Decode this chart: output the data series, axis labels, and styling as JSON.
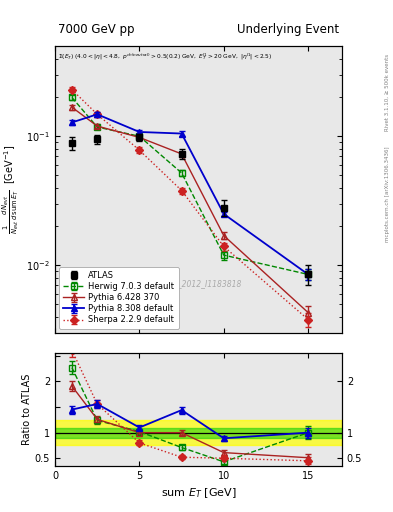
{
  "title_left": "7000 GeV pp",
  "title_right": "Underlying Event",
  "annotation": "ATLAS_2012_I1183818",
  "ylabel_main": "$\\frac{1}{N_{evt}} \\frac{d\\,N_{evt}}{d\\,\\mathrm{sum}\\,E_T}$  [GeV$^{-1}$]",
  "ylabel_ratio": "Ratio to ATLAS",
  "xlabel": "sum $E_T$ [GeV]",
  "rivet_label": "Rivet 3.1.10, ≥ 500k events",
  "mcplots_label": "mcplots.cern.ch [arXiv:1306.3436]",
  "atlas_x": [
    1.0,
    2.5,
    5.0,
    7.5,
    10.0,
    15.0
  ],
  "atlas_y": [
    0.088,
    0.095,
    0.098,
    0.073,
    0.028,
    0.0085
  ],
  "atlas_yerr": [
    0.01,
    0.008,
    0.006,
    0.006,
    0.004,
    0.0015
  ],
  "herwig_x": [
    1.0,
    2.5,
    5.0,
    7.5,
    10.0,
    15.0
  ],
  "herwig_y": [
    0.2,
    0.118,
    0.1,
    0.052,
    0.012,
    0.0085
  ],
  "herwig_yerr": [
    0.008,
    0.005,
    0.004,
    0.003,
    0.001,
    0.0008
  ],
  "pythia6_x": [
    1.0,
    2.5,
    5.0,
    7.5,
    10.0,
    15.0
  ],
  "pythia6_y": [
    0.168,
    0.12,
    0.098,
    0.073,
    0.017,
    0.0043
  ],
  "pythia6_yerr": [
    0.007,
    0.005,
    0.004,
    0.003,
    0.001,
    0.0005
  ],
  "pythia8_x": [
    1.0,
    2.5,
    5.0,
    7.5,
    10.0,
    15.0
  ],
  "pythia8_y": [
    0.128,
    0.148,
    0.108,
    0.105,
    0.025,
    0.0085
  ],
  "pythia8_yerr": [
    0.006,
    0.006,
    0.004,
    0.004,
    0.001,
    0.0008
  ],
  "sherpa_x": [
    1.0,
    2.5,
    5.0,
    7.5,
    10.0,
    15.0
  ],
  "sherpa_y": [
    0.23,
    0.148,
    0.078,
    0.038,
    0.014,
    0.0038
  ],
  "sherpa_yerr": [
    0.01,
    0.006,
    0.004,
    0.002,
    0.001,
    0.0005
  ],
  "herwig_ratio": [
    2.27,
    1.24,
    1.02,
    0.71,
    0.43,
    1.0
  ],
  "herwig_ratio_err": [
    0.12,
    0.07,
    0.05,
    0.05,
    0.05,
    0.12
  ],
  "pythia6_ratio": [
    1.91,
    1.26,
    1.0,
    1.0,
    0.61,
    0.51
  ],
  "pythia6_ratio_err": [
    0.1,
    0.07,
    0.05,
    0.05,
    0.05,
    0.08
  ],
  "pythia8_ratio": [
    1.45,
    1.56,
    1.1,
    1.44,
    0.89,
    1.0
  ],
  "pythia8_ratio_err": [
    0.08,
    0.08,
    0.05,
    0.07,
    0.05,
    0.1
  ],
  "sherpa_ratio": [
    2.61,
    1.56,
    0.8,
    0.52,
    0.5,
    0.45
  ],
  "sherpa_ratio_err": [
    0.14,
    0.08,
    0.05,
    0.04,
    0.05,
    0.07
  ],
  "xlim_main": [
    0,
    17
  ],
  "ylim_main": [
    0.003,
    0.5
  ],
  "xlim_ratio": [
    0,
    17
  ],
  "ylim_ratio": [
    0.35,
    2.55
  ],
  "color_atlas": "#000000",
  "color_herwig": "#008800",
  "color_pythia6": "#aa2222",
  "color_pythia8": "#0000cc",
  "color_sherpa": "#cc2222",
  "bg_color": "#e8e8e8"
}
